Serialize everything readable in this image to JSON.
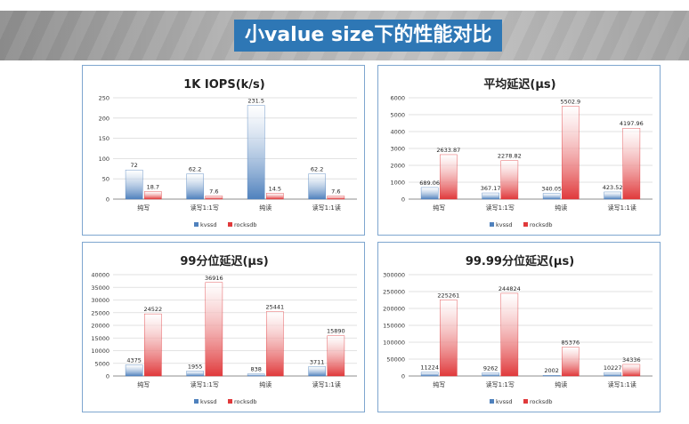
{
  "slide_title": "小value size下的性能对比",
  "colors": {
    "kvssd": "#4f81bd",
    "rocksdb": "#e0393b",
    "banner_label_bg": "#2e77b5",
    "panel_border": "#7ea6cf"
  },
  "chart_data": [
    {
      "type": "bar",
      "title": "1K IOPS(k/s)",
      "categories": [
        "纯写",
        "读写1:1写",
        "纯读",
        "读写1:1读"
      ],
      "series": [
        {
          "name": "kvssd",
          "values": [
            72,
            62.2,
            231.5,
            62.2
          ]
        },
        {
          "name": "rocksdb",
          "values": [
            18.7,
            7.6,
            14.5,
            7.6
          ]
        }
      ],
      "data_labels": [
        [
          "72",
          "62.2",
          "231.5",
          "62.2"
        ],
        [
          "18.7",
          "7.6",
          "14.5",
          "7.6"
        ]
      ],
      "ylim": [
        0,
        250
      ],
      "yticks": [
        0,
        50,
        100,
        150,
        200,
        250
      ],
      "ytick_labels": [
        "0",
        "50",
        "100",
        "150",
        "200",
        "250"
      ],
      "grid": true,
      "legend": "bottom"
    },
    {
      "type": "bar",
      "title": "平均延迟(μs)",
      "categories": [
        "纯写",
        "读写1:1写",
        "纯读",
        "读写1:1读"
      ],
      "series": [
        {
          "name": "kvssd",
          "values": [
            689.06,
            367.17,
            340.05,
            423.52
          ]
        },
        {
          "name": "rocksdb",
          "values": [
            2633.87,
            2278.82,
            5502.9,
            4197.96
          ]
        }
      ],
      "data_labels": [
        [
          "689.06",
          "367.17",
          "340.05",
          "423.52"
        ],
        [
          "2633.87",
          "2278.82",
          "5502.9",
          "4197.96"
        ]
      ],
      "ylim": [
        0,
        6000
      ],
      "yticks": [
        0,
        1000,
        2000,
        3000,
        4000,
        5000,
        6000
      ],
      "ytick_labels": [
        "0",
        "1000",
        "2000",
        "3000",
        "4000",
        "5000",
        "6000"
      ],
      "grid": true,
      "legend": "bottom"
    },
    {
      "type": "bar",
      "title": "99分位延迟(μs)",
      "categories": [
        "纯写",
        "读写1:1写",
        "纯读",
        "读写1:1读"
      ],
      "series": [
        {
          "name": "kvssd",
          "values": [
            4375,
            1955,
            838,
            3711
          ]
        },
        {
          "name": "rocksdb",
          "values": [
            24522,
            36916,
            25441,
            15890
          ]
        }
      ],
      "data_labels": [
        [
          "4375",
          "1955",
          "838",
          "3711"
        ],
        [
          "24522",
          "36916",
          "25441",
          "15890"
        ]
      ],
      "ylim": [
        0,
        40000
      ],
      "yticks": [
        0,
        5000,
        10000,
        15000,
        20000,
        25000,
        30000,
        35000,
        40000
      ],
      "ytick_labels": [
        "0",
        "5000",
        "10000",
        "15000",
        "20000",
        "25000",
        "30000",
        "35000",
        "40000"
      ],
      "grid": true,
      "legend": "bottom"
    },
    {
      "type": "bar",
      "title": "99.99分位延迟(μs)",
      "categories": [
        "纯写",
        "读写1:1写",
        "纯读",
        "读写1:1读"
      ],
      "series": [
        {
          "name": "kvssd",
          "values": [
            11224,
            9262,
            2002,
            10227
          ]
        },
        {
          "name": "rocksdb",
          "values": [
            225261,
            244824,
            85376,
            34336
          ]
        }
      ],
      "data_labels": [
        [
          "11224",
          "9262",
          "2002",
          "10227"
        ],
        [
          "225261",
          "244824",
          "85376",
          "34336"
        ]
      ],
      "ylim": [
        0,
        300000
      ],
      "yticks": [
        0,
        50000,
        100000,
        150000,
        200000,
        250000,
        300000
      ],
      "ytick_labels": [
        "0",
        "50000",
        "100000",
        "150000",
        "200000",
        "250000",
        "300000"
      ],
      "grid": true,
      "legend": "bottom"
    }
  ]
}
